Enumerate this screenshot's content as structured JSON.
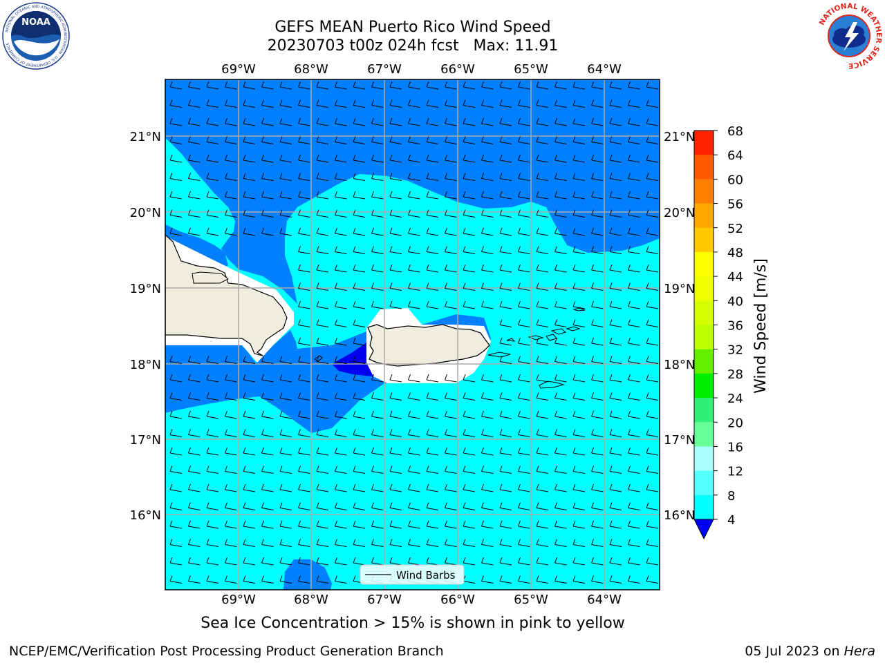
{
  "header": {
    "title_line1": "GEFS MEAN Puerto Rico Wind Speed",
    "title_line2": "20230703 t00z 024h fcst   Max: 11.91"
  },
  "logos": {
    "left": "NOAA",
    "left_ring_text": "NATIONAL OCEANIC AND ATMOSPHERIC ADMINISTRATION · U.S. DEPARTMENT OF COMMERCE",
    "right_ring_text": "NATIONAL WEATHER SERVICE"
  },
  "map": {
    "lon_labels": [
      "69°W",
      "68°W",
      "67°W",
      "66°W",
      "65°W",
      "64°W"
    ],
    "lat_labels": [
      "21°N",
      "20°N",
      "19°N",
      "18°N",
      "17°N",
      "16°N"
    ],
    "legend_label": "Wind Barbs",
    "land_color": "#efedde",
    "background_color": "#00ffff"
  },
  "colorbar": {
    "label": "Wind Speed [m/s]",
    "ticks": [
      "68",
      "64",
      "60",
      "56",
      "52",
      "48",
      "44",
      "40",
      "36",
      "32",
      "28",
      "24",
      "20",
      "16",
      "12",
      "8",
      "4"
    ],
    "colors": [
      "#ff0000",
      "#ff2400",
      "#ff5a00",
      "#ff8000",
      "#ffa800",
      "#ffc800",
      "#ffff00",
      "#eeff00",
      "#d4ff00",
      "#bbff00",
      "#66ee00",
      "#00ee00",
      "#33ee77",
      "#66ff99",
      "#aaffff",
      "#55ffff",
      "#00ffff",
      "#0080ff",
      "#0000ff"
    ]
  },
  "footer": {
    "note": "Sea Ice Concentration > 15% is shown in pink to yellow",
    "credit": "NCEP/EMC/Verification Post Processing Product Generation Branch",
    "date": "05 Jul 2023 on ",
    "machine": "Hera"
  }
}
